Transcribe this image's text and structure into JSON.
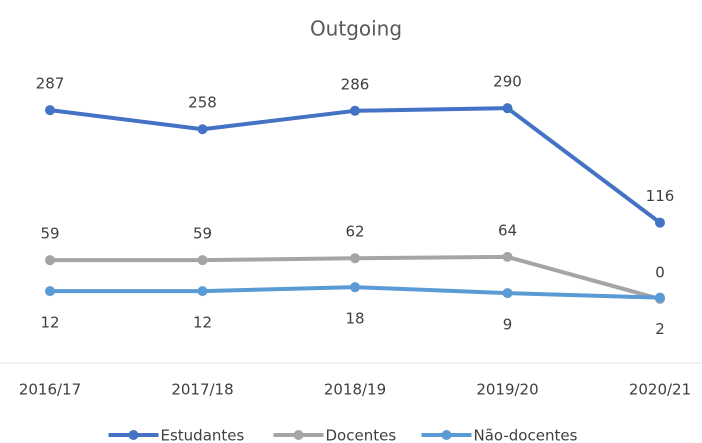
{
  "chart_data": {
    "type": "line",
    "title": "Outgoing",
    "categories": [
      "2016/17",
      "2017/18",
      "2018/19",
      "2019/20",
      "2020/21"
    ],
    "series": [
      {
        "name": "Estudantes",
        "color": "#4472c4",
        "values": [
          287,
          258,
          286,
          290,
          116
        ]
      },
      {
        "name": "Docentes",
        "color": "#a5a5a5",
        "values": [
          59,
          59,
          62,
          64,
          0
        ]
      },
      {
        "name": "Não-docentes",
        "color": "#5b9bd5",
        "values": [
          12,
          12,
          18,
          9,
          2
        ]
      }
    ]
  }
}
